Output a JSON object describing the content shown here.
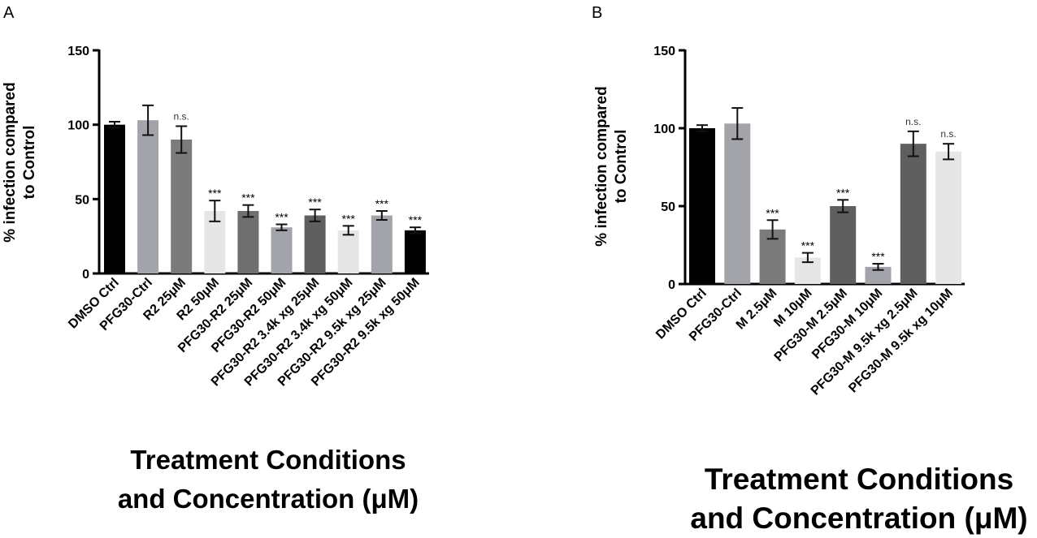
{
  "chart_data": [
    {
      "type": "bar",
      "panel": "A",
      "title": "",
      "ylabel_lines": [
        "% infection compared",
        "to  Control"
      ],
      "xlabel_lines": [
        "Treatment Conditions",
        "and Concentration (μM)"
      ],
      "ylim": [
        0,
        150
      ],
      "yticks": [
        0,
        50,
        100,
        150
      ],
      "categories": [
        "DMSO Ctrl",
        "PFG30-Ctrl",
        "R2 25μM",
        "R2 50μM",
        "PFG30-R2 25μM",
        "PFG30-R2 50μM",
        "PFG30-R2 3.4k xg 25μM",
        "PFG30-R2 3.4k xg 50μM",
        "PFG30-R2 9.5k xg 25μM",
        "PFG30-R2 9.5k xg 50μM"
      ],
      "values": [
        100,
        103,
        90,
        42,
        42,
        31,
        39,
        29,
        39,
        29
      ],
      "errors": [
        2,
        10,
        9,
        7,
        4,
        2,
        4,
        3,
        3,
        2
      ],
      "significance": [
        "",
        "",
        "n.s.",
        "***",
        "***",
        "***",
        "***",
        "***",
        "***",
        "***"
      ],
      "bar_colors": [
        "#000000",
        "#a3a3aa",
        "#7b7b7b",
        "#e6e6e6",
        "#6f6f6f",
        "#a3a3aa",
        "#5f5f5f",
        "#e6e6e6",
        "#a3a3aa",
        "#000000"
      ]
    },
    {
      "type": "bar",
      "panel": "B",
      "title": "",
      "ylabel_lines": [
        "% infection compared",
        "to  Control"
      ],
      "xlabel_lines": [
        "Treatment Conditions",
        "and Concentration (μM)"
      ],
      "ylim": [
        0,
        150
      ],
      "yticks": [
        0,
        50,
        100,
        150
      ],
      "categories": [
        "DMSO Ctrl",
        "PFG30-Ctrl",
        "M 2.5μM",
        "M 10μM",
        "PFG30-M 2.5μM",
        "PFG30-M 10μM",
        "PFG30-M 9.5k xg 2.5μM",
        "PFG30-M 9.5k xg 10μM"
      ],
      "values": [
        100,
        103,
        35,
        17,
        50,
        11,
        90,
        85
      ],
      "errors": [
        2,
        10,
        6,
        3,
        4,
        2,
        8,
        5
      ],
      "significance": [
        "",
        "",
        "***",
        "***",
        "***",
        "***",
        "n.s.",
        "n.s."
      ],
      "bar_colors": [
        "#000000",
        "#a3a3aa",
        "#7b7b7b",
        "#e6e6e6",
        "#5f5f5f",
        "#a3a3aa",
        "#5f5f5f",
        "#e6e6e6"
      ]
    }
  ]
}
